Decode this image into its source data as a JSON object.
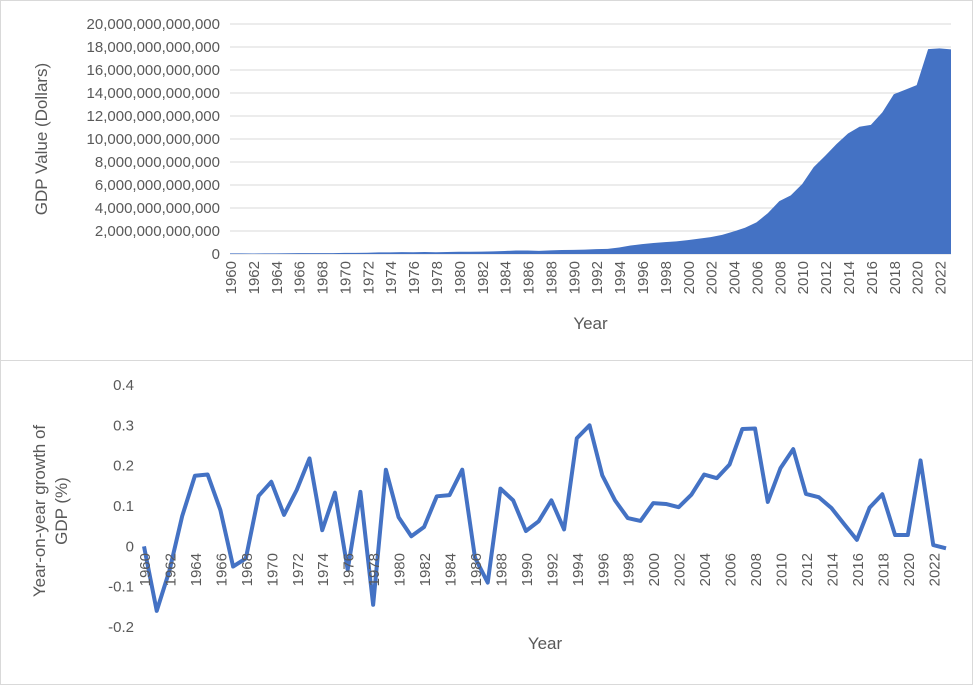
{
  "chart_data": [
    {
      "type": "area",
      "title": "",
      "xlabel": "Year",
      "ylabel": "GDP Value (Dollars)",
      "ylim": [
        0,
        20000000000000
      ],
      "y_ticks": [
        "0",
        "2,000,000,000,000",
        "4,000,000,000,000",
        "6,000,000,000,000",
        "8,000,000,000,000",
        "10,000,000,000,000",
        "12,000,000,000,000",
        "14,000,000,000,000",
        "16,000,000,000,000",
        "18,000,000,000,000",
        "20,000,000,000,000"
      ],
      "x_tick_labels": [
        "1960",
        "1962",
        "1964",
        "1966",
        "1968",
        "1970",
        "1972",
        "1974",
        "1976",
        "1978",
        "1980",
        "1982",
        "1984",
        "1986",
        "1988",
        "1990",
        "1992",
        "1994",
        "1996",
        "1998",
        "2000",
        "2002",
        "2004",
        "2006",
        "2008",
        "2010",
        "2012",
        "2014",
        "2016",
        "2018",
        "2020",
        "2022"
      ],
      "grid": true,
      "color": "#4472c4",
      "series": [
        {
          "x": [
            1960,
            1961,
            1962,
            1963,
            1964,
            1965,
            1966,
            1967,
            1968,
            1969,
            1970,
            1971,
            1972,
            1973,
            1974,
            1975,
            1976,
            1977,
            1978,
            1979,
            1980,
            1981,
            1982,
            1983,
            1984,
            1985,
            1986,
            1987,
            1988,
            1989,
            1990,
            1991,
            1992,
            1993,
            1994,
            1995,
            1996,
            1997,
            1998,
            1999,
            2000,
            2001,
            2002,
            2003,
            2004,
            2005,
            2006,
            2007,
            2008,
            2009,
            2010,
            2011,
            2012,
            2013,
            2014,
            2015,
            2016,
            2017,
            2018,
            2019,
            2020,
            2021,
            2022,
            2023
          ],
          "values": [
            59700000000,
            50100000000,
            47200000000,
            50700000000,
            59700000000,
            70400000000,
            76700000000,
            72900000000,
            70800000000,
            79700000000,
            92600000000,
            99800000000,
            113700000000,
            138500000000,
            144200000000,
            163400000000,
            153900000000,
            174900000000,
            149500000000,
            178300000000,
            191100000000,
            195900000000,
            205100000000,
            230700000000,
            259900000000,
            309500000000,
            300800000000,
            272900000000,
            312400000000,
            347800000000,
            360900000000,
            383400000000,
            426900000000,
            444700000000,
            564300000000,
            734500000000,
            863700000000,
            961600000000,
            1029000000000,
            1094000000000,
            1211000000000,
            1339000000000,
            1471000000000,
            1660000000000,
            1955000000000,
            2286000000000,
            2752000000000,
            3550000000000,
            4594000000000,
            5102000000000,
            6087000000000,
            7552000000000,
            8532000000000,
            9570000000000,
            10476000000000,
            11062000000000,
            11233000000000,
            12310000000000,
            13895000000000,
            14280000000000,
            14688000000000,
            17820000000000,
            17882000000000,
            17795000000000
          ]
        }
      ]
    },
    {
      "type": "line",
      "title": "",
      "xlabel": "Year",
      "ylabel": "Year-on-year growth of GDP (%)",
      "ylim": [
        -0.2,
        0.4
      ],
      "y_ticks": [
        "-0.2",
        "-0.1",
        "0",
        "0.1",
        "0.2",
        "0.3",
        "0.4"
      ],
      "x_tick_labels": [
        "1960",
        "1962",
        "1964",
        "1966",
        "1968",
        "1970",
        "1972",
        "1974",
        "1976",
        "1978",
        "1980",
        "1982",
        "1984",
        "1986",
        "1988",
        "1990",
        "1992",
        "1994",
        "1996",
        "1998",
        "2000",
        "2002",
        "2004",
        "2006",
        "2008",
        "2010",
        "2012",
        "2014",
        "2016",
        "2018",
        "2020",
        "2022"
      ],
      "grid": false,
      "color": "#4472c4",
      "series": [
        {
          "x": [
            1960,
            1961,
            1962,
            1963,
            1964,
            1965,
            1966,
            1967,
            1968,
            1969,
            1970,
            1971,
            1972,
            1973,
            1974,
            1975,
            1976,
            1977,
            1978,
            1979,
            1980,
            1981,
            1982,
            1983,
            1984,
            1985,
            1986,
            1987,
            1988,
            1989,
            1990,
            1991,
            1992,
            1993,
            1994,
            1995,
            1996,
            1997,
            1998,
            1999,
            2000,
            2001,
            2002,
            2003,
            2004,
            2005,
            2006,
            2007,
            2008,
            2009,
            2010,
            2011,
            2012,
            2013,
            2014,
            2015,
            2016,
            2017,
            2018,
            2019,
            2020,
            2021,
            2022,
            2023
          ],
          "values": [
            0,
            -0.16,
            -0.06,
            0.075,
            0.175,
            0.178,
            0.09,
            -0.05,
            -0.03,
            0.125,
            0.16,
            0.078,
            0.14,
            0.218,
            0.04,
            0.133,
            -0.058,
            0.135,
            -0.145,
            0.19,
            0.072,
            0.025,
            0.048,
            0.124,
            0.127,
            0.19,
            -0.028,
            -0.09,
            0.143,
            0.114,
            0.038,
            0.062,
            0.114,
            0.042,
            0.268,
            0.3,
            0.176,
            0.114,
            0.07,
            0.063,
            0.107,
            0.105,
            0.097,
            0.128,
            0.178,
            0.169,
            0.203,
            0.291,
            0.292,
            0.11,
            0.194,
            0.241,
            0.13,
            0.122,
            0.095,
            0.055,
            0.016,
            0.096,
            0.129,
            0.028,
            0.028,
            0.213,
            0.003,
            -0.005
          ]
        }
      ]
    }
  ]
}
